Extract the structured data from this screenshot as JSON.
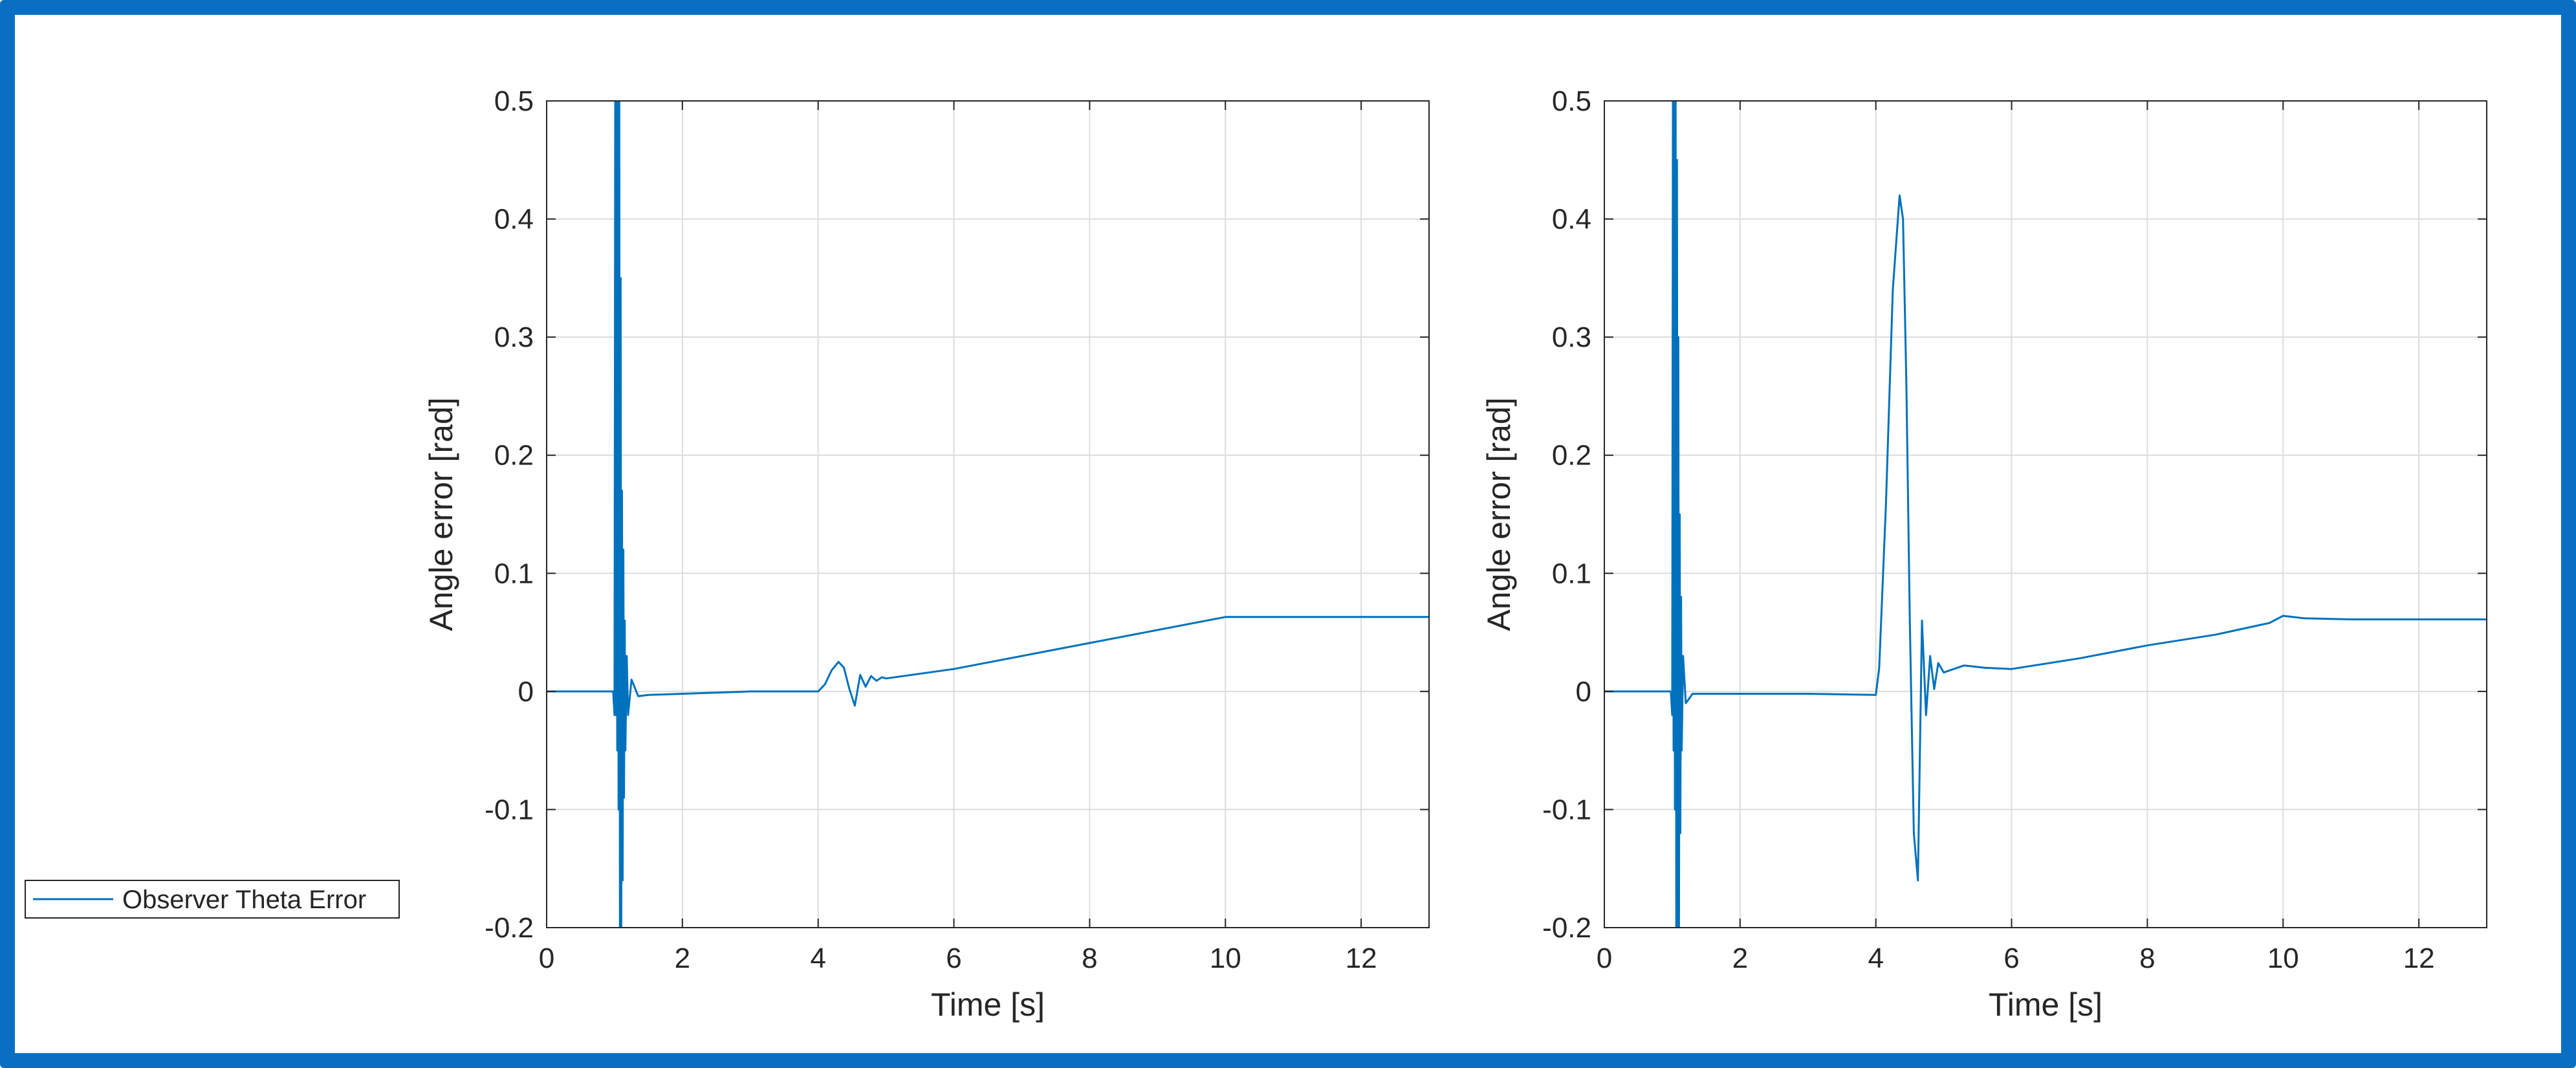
{
  "chart_data": [
    {
      "type": "line",
      "title": "",
      "xlabel": "Time [s]",
      "ylabel": "Angle error [rad]",
      "xlim": [
        0,
        13
      ],
      "ylim": [
        -0.2,
        0.5
      ],
      "xticks": [
        0,
        2,
        4,
        6,
        8,
        10,
        12
      ],
      "yticks": [
        -0.2,
        -0.1,
        0,
        0.1,
        0.2,
        0.3,
        0.4,
        0.5
      ],
      "xtick_labels": [
        "0",
        "2",
        "4",
        "6",
        "8",
        "10",
        "12"
      ],
      "ytick_labels": [
        "-0.2",
        "-0.1",
        "0",
        "0.1",
        "0.2",
        "0.3",
        "0.4",
        "0.5"
      ],
      "grid": true,
      "series": [
        {
          "name": "Observer Theta Error",
          "color": "#0072BD",
          "x": [
            0,
            0.98,
            1.0,
            1.01,
            1.02,
            1.03,
            1.04,
            1.05,
            1.06,
            1.07,
            1.08,
            1.09,
            1.1,
            1.11,
            1.12,
            1.13,
            1.14,
            1.15,
            1.16,
            1.18,
            1.2,
            1.25,
            1.35,
            1.5,
            2.0,
            3.0,
            4.0,
            4.1,
            4.2,
            4.3,
            4.38,
            4.46,
            4.54,
            4.62,
            4.7,
            4.78,
            4.86,
            4.94,
            5.0,
            6.0,
            8.0,
            10.0,
            11.0,
            13.0
          ],
          "y": [
            0,
            0,
            -0.02,
            0.5,
            -0.02,
            0.5,
            -0.05,
            0.5,
            -0.1,
            0.5,
            -0.2,
            0.35,
            -0.2,
            0.17,
            -0.16,
            0.12,
            -0.09,
            0.06,
            -0.05,
            0.03,
            -0.02,
            0.01,
            -0.004,
            -0.003,
            -0.002,
            0,
            0,
            0.006,
            0.018,
            0.025,
            0.02,
            0.002,
            -0.012,
            0.014,
            0.004,
            0.013,
            0.009,
            0.012,
            0.011,
            0.019,
            0.041,
            0.063,
            0.063,
            0.063
          ]
        }
      ]
    },
    {
      "type": "line",
      "title": "",
      "xlabel": "Time [s]",
      "ylabel": "Angle error [rad]",
      "xlim": [
        0,
        13
      ],
      "ylim": [
        -0.2,
        0.5
      ],
      "xticks": [
        0,
        2,
        4,
        6,
        8,
        10,
        12
      ],
      "yticks": [
        -0.2,
        -0.1,
        0,
        0.1,
        0.2,
        0.3,
        0.4,
        0.5
      ],
      "xtick_labels": [
        "0",
        "2",
        "4",
        "6",
        "8",
        "10",
        "12"
      ],
      "ytick_labels": [
        "-0.2",
        "-0.1",
        "0",
        "0.1",
        "0.2",
        "0.3",
        "0.4",
        "0.5"
      ],
      "grid": true,
      "series": [
        {
          "name": "Observer Theta Error",
          "color": "#0072BD",
          "x": [
            0,
            0.98,
            1.0,
            1.01,
            1.02,
            1.03,
            1.04,
            1.05,
            1.06,
            1.07,
            1.08,
            1.09,
            1.1,
            1.11,
            1.12,
            1.13,
            1.14,
            1.16,
            1.2,
            1.3,
            1.5,
            2.0,
            3.0,
            4.0,
            4.05,
            4.15,
            4.25,
            4.35,
            4.4,
            4.45,
            4.5,
            4.56,
            4.62,
            4.68,
            4.74,
            4.8,
            4.86,
            4.92,
            5.0,
            5.3,
            5.6,
            6.0,
            7.0,
            8.0,
            9.0,
            9.8,
            10.0,
            10.3,
            11.0,
            12.0,
            13.0
          ],
          "y": [
            0,
            0,
            -0.02,
            0.5,
            -0.05,
            0.5,
            -0.1,
            0.5,
            -0.2,
            0.45,
            -0.2,
            0.3,
            -0.2,
            0.15,
            -0.12,
            0.08,
            -0.05,
            0.03,
            -0.01,
            -0.002,
            -0.002,
            -0.002,
            -0.002,
            -0.003,
            0.02,
            0.16,
            0.34,
            0.42,
            0.4,
            0.26,
            0.06,
            -0.12,
            -0.16,
            0.06,
            -0.02,
            0.03,
            0.002,
            0.024,
            0.016,
            0.022,
            0.02,
            0.019,
            0.028,
            0.039,
            0.048,
            0.058,
            0.064,
            0.062,
            0.061,
            0.061,
            0.061
          ]
        }
      ]
    }
  ],
  "legend": {
    "label": "Observer Theta Error",
    "color": "#0072BD"
  }
}
